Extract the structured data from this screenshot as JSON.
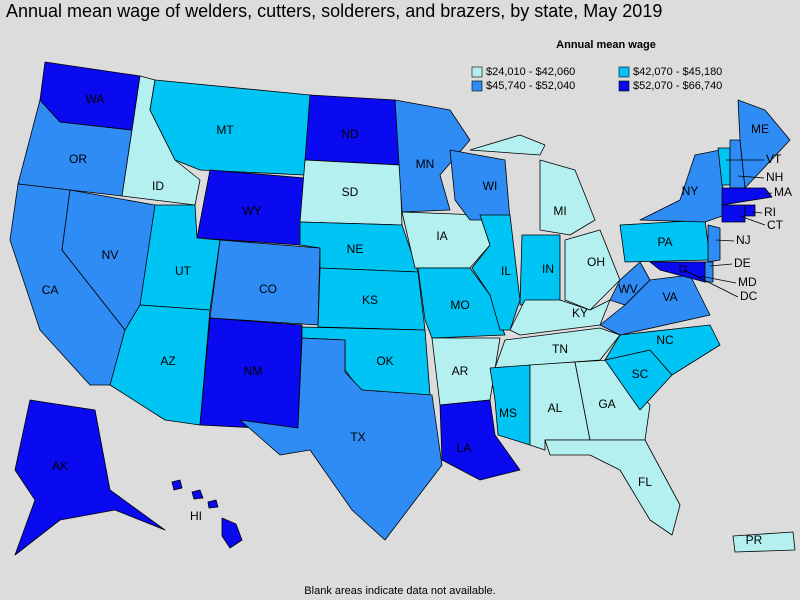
{
  "title": "Annual mean wage of welders, cutters, solderers, and brazers, by state, May 2019",
  "legend": {
    "title": "Annual mean wage",
    "items": [
      {
        "label": "$24,010 - $42,060",
        "color": "#b4f0f0",
        "states": [
          "ID",
          "SD",
          "IA",
          "MI",
          "OH",
          "KY",
          "TN",
          "AR",
          "AL",
          "GA",
          "FL",
          "PR"
        ]
      },
      {
        "label": "$42,070 - $45,180",
        "color": "#00c4f4",
        "states": [
          "MT",
          "UT",
          "AZ",
          "NE",
          "KS",
          "OK",
          "MO",
          "IL",
          "IN",
          "MS",
          "NC",
          "SC",
          "PA",
          "VT"
        ]
      },
      {
        "label": "$45,740 - $52,040",
        "color": "#2f8cf5",
        "states": [
          "OR",
          "CA",
          "NV",
          "CO",
          "TX",
          "MN",
          "WI",
          "NY",
          "WV",
          "VA",
          "ME",
          "NH",
          "NJ",
          "DE"
        ]
      },
      {
        "label": "$52,070 - $66,740",
        "color": "#0a0af0",
        "states": [
          "WA",
          "ND",
          "WY",
          "NM",
          "LA",
          "AK",
          "HI",
          "MD",
          "DC",
          "MA",
          "CT",
          "RI"
        ]
      }
    ]
  },
  "footnote": "Blank areas indicate data not available."
}
